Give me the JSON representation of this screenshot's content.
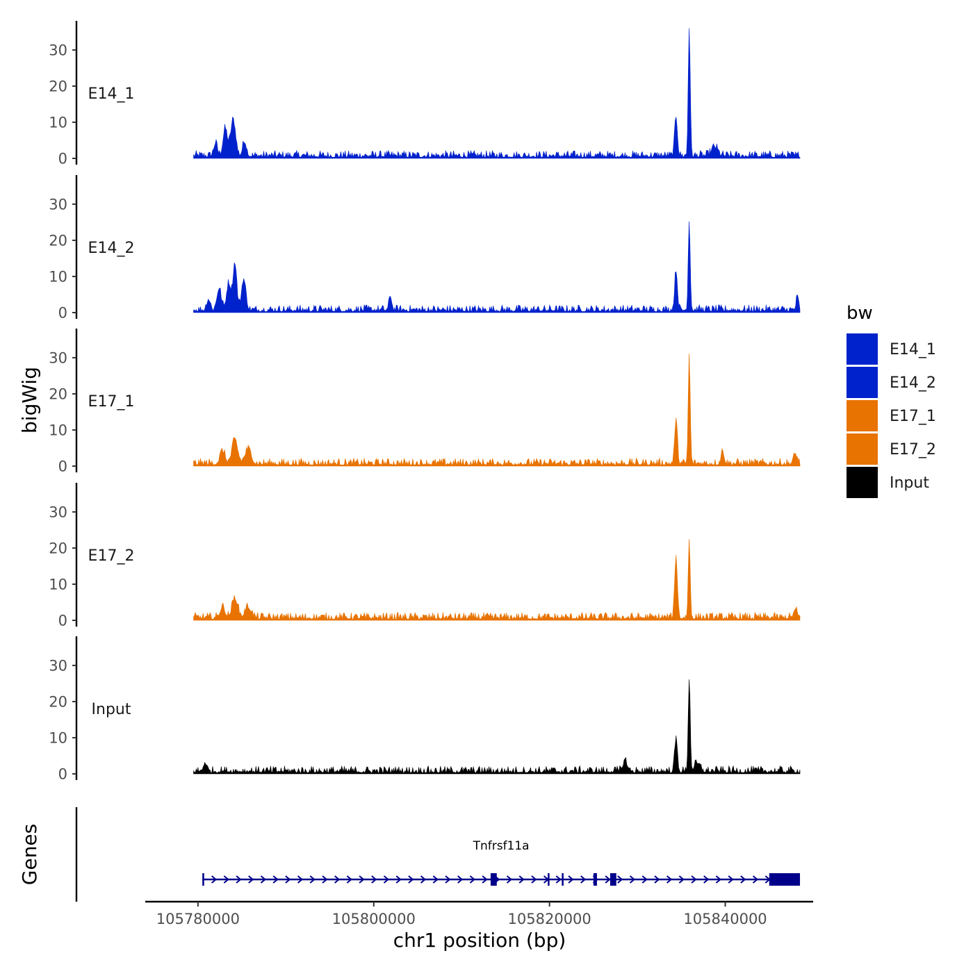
{
  "chart_data": {
    "type": "area",
    "title": "",
    "ylabel": "bigWig",
    "xlabel": "chr1 position (bp)",
    "gene_track_label": "Genes",
    "xlim": [
      105774000,
      105850000
    ],
    "ylim": [
      0,
      37
    ],
    "x_ticks": [
      105780000,
      105800000,
      105820000,
      105840000
    ],
    "x_tick_labels": [
      "105780000",
      "105800000",
      "105820000",
      "105840000"
    ],
    "y_ticks": [
      0,
      10,
      20,
      30
    ],
    "y_tick_labels": [
      "0",
      "10",
      "20",
      "30"
    ],
    "region": [
      105779500,
      105848500
    ],
    "legend": {
      "title": "bw",
      "position": "right",
      "entries": [
        {
          "label": "E14_1",
          "color": "#0022CC"
        },
        {
          "label": "E14_2",
          "color": "#0022CC"
        },
        {
          "label": "E17_1",
          "color": "#E87300"
        },
        {
          "label": "E17_2",
          "color": "#E87300"
        },
        {
          "label": "Input",
          "color": "#000000"
        }
      ]
    },
    "series": [
      {
        "name": "E14_1",
        "color": "#0022CC",
        "peaks": [
          {
            "x": 105782000,
            "y": 3.5,
            "w": 300
          },
          {
            "x": 105783100,
            "y": 7.5,
            "w": 350
          },
          {
            "x": 105784000,
            "y": 10,
            "w": 400
          },
          {
            "x": 105785300,
            "y": 4,
            "w": 300
          },
          {
            "x": 105834400,
            "y": 11,
            "w": 220
          },
          {
            "x": 105835900,
            "y": 36,
            "w": 160
          },
          {
            "x": 105838800,
            "y": 2.5,
            "w": 500
          }
        ]
      },
      {
        "name": "E14_2",
        "color": "#0022CC",
        "peaks": [
          {
            "x": 105781200,
            "y": 3,
            "w": 300
          },
          {
            "x": 105782400,
            "y": 6,
            "w": 350
          },
          {
            "x": 105783500,
            "y": 7.5,
            "w": 350
          },
          {
            "x": 105784200,
            "y": 13,
            "w": 300
          },
          {
            "x": 105785200,
            "y": 8.5,
            "w": 350
          },
          {
            "x": 105801900,
            "y": 4,
            "w": 200
          },
          {
            "x": 105834400,
            "y": 11,
            "w": 220
          },
          {
            "x": 105835900,
            "y": 25,
            "w": 160
          },
          {
            "x": 105848200,
            "y": 3.5,
            "w": 200
          }
        ]
      },
      {
        "name": "E17_1",
        "color": "#E87300",
        "peaks": [
          {
            "x": 105782800,
            "y": 3.5,
            "w": 400
          },
          {
            "x": 105784200,
            "y": 6.5,
            "w": 450
          },
          {
            "x": 105785700,
            "y": 4,
            "w": 500
          },
          {
            "x": 105834400,
            "y": 12,
            "w": 220
          },
          {
            "x": 105835900,
            "y": 30,
            "w": 160
          },
          {
            "x": 105839700,
            "y": 3.5,
            "w": 250
          },
          {
            "x": 105848000,
            "y": 2.5,
            "w": 300
          }
        ]
      },
      {
        "name": "E17_2",
        "color": "#E87300",
        "peaks": [
          {
            "x": 105782800,
            "y": 3,
            "w": 400
          },
          {
            "x": 105784200,
            "y": 5.5,
            "w": 450
          },
          {
            "x": 105785700,
            "y": 3,
            "w": 500
          },
          {
            "x": 105834400,
            "y": 17,
            "w": 220
          },
          {
            "x": 105835900,
            "y": 21.5,
            "w": 160
          },
          {
            "x": 105848000,
            "y": 2,
            "w": 300
          }
        ]
      },
      {
        "name": "Input",
        "color": "#000000",
        "peaks": [
          {
            "x": 105780800,
            "y": 2.5,
            "w": 250
          },
          {
            "x": 105828600,
            "y": 3,
            "w": 350
          },
          {
            "x": 105834400,
            "y": 9,
            "w": 220
          },
          {
            "x": 105835900,
            "y": 26,
            "w": 160
          },
          {
            "x": 105836800,
            "y": 2,
            "w": 500
          }
        ]
      }
    ],
    "gene": {
      "name": "Tnfrsf11a",
      "strand": "+",
      "color": "#00008B",
      "start": 105780500,
      "end": 105848500,
      "exons": [
        {
          "start": 105780500,
          "end": 105780700
        },
        {
          "start": 105813300,
          "end": 105814000
        },
        {
          "start": 105819800,
          "end": 105819950
        },
        {
          "start": 105821400,
          "end": 105821550
        },
        {
          "start": 105825000,
          "end": 105825400
        },
        {
          "start": 105826900,
          "end": 105827600
        },
        {
          "start": 105845000,
          "end": 105848500
        }
      ]
    }
  }
}
